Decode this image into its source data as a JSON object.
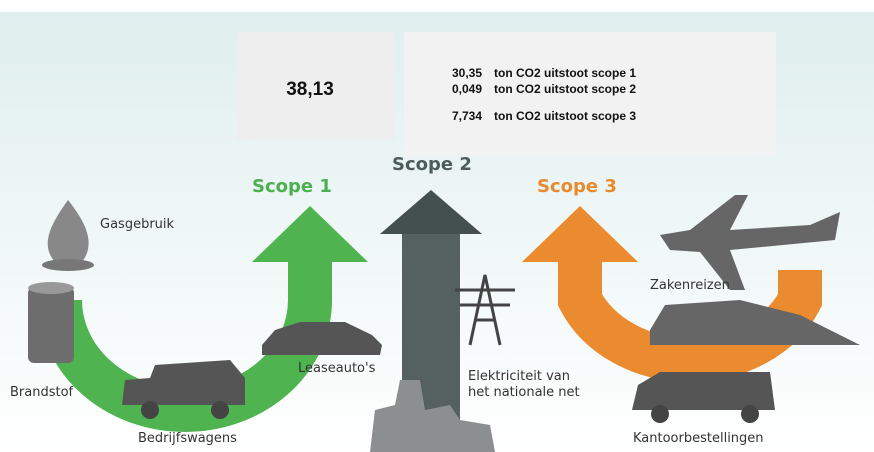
{
  "summary": {
    "total": "38,13",
    "rows": [
      {
        "value": "30,35",
        "label": "ton CO2 uitstoot scope 1"
      },
      {
        "value": "0,049",
        "label": "ton CO2 uitstoot scope 2"
      },
      {
        "value": "7,734",
        "label": "ton CO2 uitstoot scope 3"
      }
    ]
  },
  "scopes": [
    "Scope 1",
    "Scope 2",
    "Scope 3"
  ],
  "sources": {
    "gas": "Gasgebruik",
    "fuel": "Brandstof",
    "vans": "Bedrijfswagens",
    "lease": "Leaseauto's",
    "electricity": [
      "Elektriciteit van",
      "het nationale net"
    ],
    "travel": "Zakenreizen",
    "orders": "Kantoorbestellingen"
  }
}
